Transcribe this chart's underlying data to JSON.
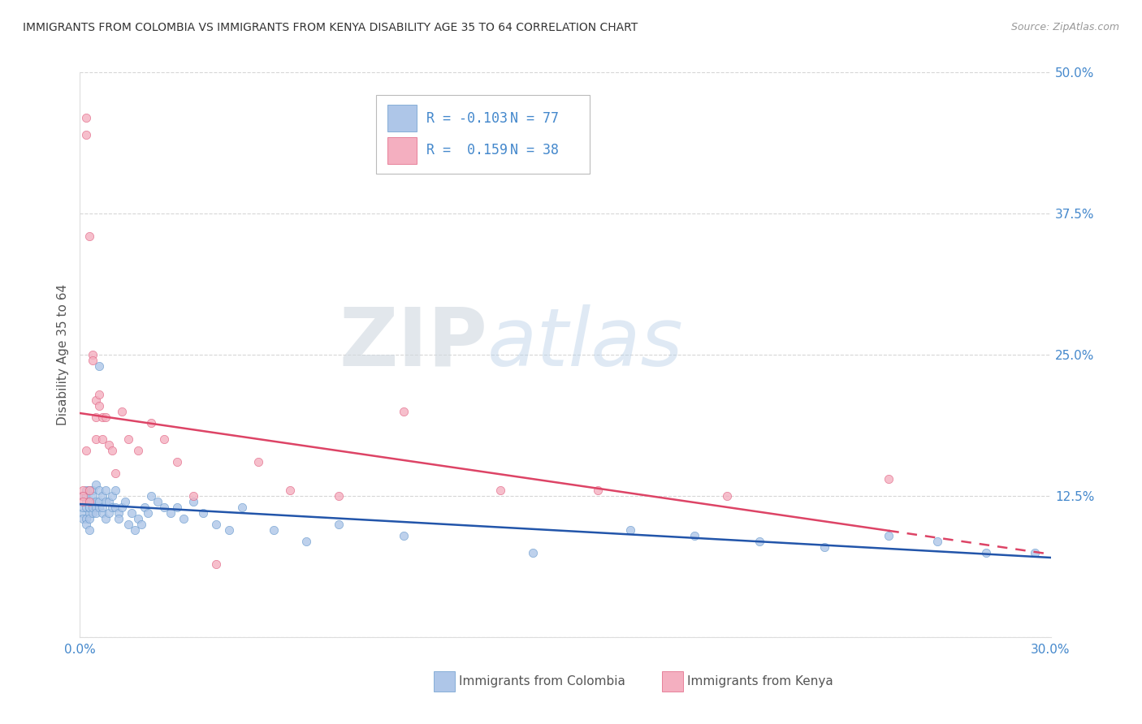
{
  "title": "IMMIGRANTS FROM COLOMBIA VS IMMIGRANTS FROM KENYA DISABILITY AGE 35 TO 64 CORRELATION CHART",
  "source": "Source: ZipAtlas.com",
  "ylabel": "Disability Age 35 to 64",
  "xmin": 0.0,
  "xmax": 0.3,
  "ymin": 0.0,
  "ymax": 0.5,
  "xticks": [
    0.0,
    0.05,
    0.1,
    0.15,
    0.2,
    0.25,
    0.3
  ],
  "yticks": [
    0.0,
    0.125,
    0.25,
    0.375,
    0.5
  ],
  "ytick_labels": [
    "",
    "12.5%",
    "25.0%",
    "37.5%",
    "50.0%"
  ],
  "colombia_color": "#aec6e8",
  "kenya_color": "#f4afc0",
  "colombia_edge": "#6699cc",
  "kenya_edge": "#e06080",
  "trend_colombia_color": "#2255aa",
  "trend_kenya_color": "#dd4466",
  "legend_r_colombia": "R = -0.103",
  "legend_n_colombia": "N = 77",
  "legend_r_kenya": "R =  0.159",
  "legend_n_kenya": "N = 38",
  "colombia_label": "Immigrants from Colombia",
  "kenya_label": "Immigrants from Kenya",
  "watermark_zip": "ZIP",
  "watermark_atlas": "atlas",
  "background_color": "#ffffff",
  "grid_color": "#cccccc",
  "title_color": "#333333",
  "right_label_color": "#4488cc",
  "colombia_x": [
    0.001,
    0.001,
    0.001,
    0.001,
    0.002,
    0.002,
    0.002,
    0.002,
    0.002,
    0.002,
    0.003,
    0.003,
    0.003,
    0.003,
    0.003,
    0.003,
    0.003,
    0.004,
    0.004,
    0.004,
    0.004,
    0.004,
    0.005,
    0.005,
    0.005,
    0.005,
    0.006,
    0.006,
    0.006,
    0.006,
    0.007,
    0.007,
    0.007,
    0.008,
    0.008,
    0.008,
    0.009,
    0.009,
    0.01,
    0.01,
    0.011,
    0.011,
    0.012,
    0.012,
    0.013,
    0.014,
    0.015,
    0.016,
    0.017,
    0.018,
    0.019,
    0.02,
    0.021,
    0.022,
    0.024,
    0.026,
    0.028,
    0.03,
    0.032,
    0.035,
    0.038,
    0.042,
    0.046,
    0.05,
    0.06,
    0.07,
    0.08,
    0.1,
    0.14,
    0.17,
    0.19,
    0.21,
    0.23,
    0.25,
    0.265,
    0.28,
    0.295
  ],
  "colombia_y": [
    0.11,
    0.125,
    0.115,
    0.105,
    0.12,
    0.13,
    0.115,
    0.105,
    0.1,
    0.125,
    0.11,
    0.12,
    0.115,
    0.105,
    0.13,
    0.095,
    0.115,
    0.12,
    0.11,
    0.13,
    0.115,
    0.125,
    0.12,
    0.135,
    0.115,
    0.11,
    0.13,
    0.115,
    0.12,
    0.24,
    0.125,
    0.11,
    0.115,
    0.12,
    0.13,
    0.105,
    0.12,
    0.11,
    0.125,
    0.115,
    0.13,
    0.115,
    0.11,
    0.105,
    0.115,
    0.12,
    0.1,
    0.11,
    0.095,
    0.105,
    0.1,
    0.115,
    0.11,
    0.125,
    0.12,
    0.115,
    0.11,
    0.115,
    0.105,
    0.12,
    0.11,
    0.1,
    0.095,
    0.115,
    0.095,
    0.085,
    0.1,
    0.09,
    0.075,
    0.095,
    0.09,
    0.085,
    0.08,
    0.09,
    0.085,
    0.075,
    0.075
  ],
  "kenya_x": [
    0.001,
    0.001,
    0.001,
    0.002,
    0.002,
    0.002,
    0.003,
    0.003,
    0.003,
    0.004,
    0.004,
    0.005,
    0.005,
    0.005,
    0.006,
    0.006,
    0.007,
    0.007,
    0.008,
    0.009,
    0.01,
    0.011,
    0.013,
    0.015,
    0.018,
    0.022,
    0.026,
    0.03,
    0.035,
    0.042,
    0.055,
    0.065,
    0.08,
    0.1,
    0.13,
    0.16,
    0.2,
    0.25
  ],
  "kenya_y": [
    0.13,
    0.125,
    0.12,
    0.46,
    0.445,
    0.165,
    0.355,
    0.12,
    0.13,
    0.25,
    0.245,
    0.21,
    0.175,
    0.195,
    0.215,
    0.205,
    0.195,
    0.175,
    0.195,
    0.17,
    0.165,
    0.145,
    0.2,
    0.175,
    0.165,
    0.19,
    0.175,
    0.155,
    0.125,
    0.065,
    0.155,
    0.13,
    0.125,
    0.2,
    0.13,
    0.13,
    0.125,
    0.14
  ],
  "colombia_size": 55,
  "kenya_size": 55
}
